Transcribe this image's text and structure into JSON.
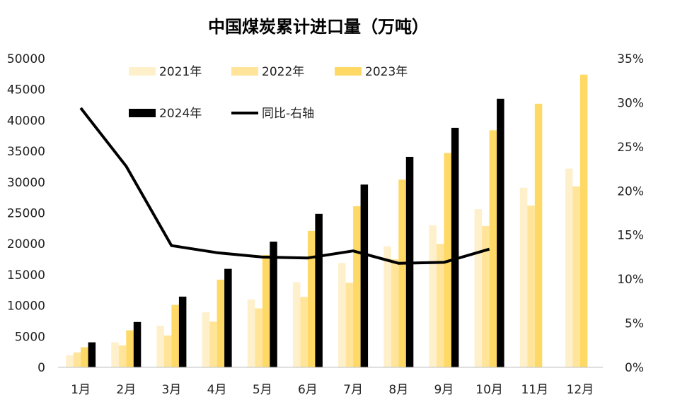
{
  "chart_data": {
    "type": "bar",
    "title": "中国煤炭累计进口量（万吨）",
    "categories": [
      "1月",
      "2月",
      "3月",
      "4月",
      "5月",
      "6月",
      "7月",
      "8月",
      "9月",
      "10月",
      "11月",
      "12月"
    ],
    "series": [
      {
        "name": "2021年",
        "kind": "bar",
        "color": "#FFF0CC",
        "values": [
          1950,
          4050,
          6750,
          8900,
          11000,
          13800,
          16900,
          19600,
          23000,
          25600,
          29100,
          32200
        ]
      },
      {
        "name": "2022年",
        "kind": "bar",
        "color": "#FFE49A",
        "values": [
          2400,
          3550,
          5150,
          7400,
          9550,
          11400,
          13700,
          17500,
          20000,
          22900,
          26200,
          29300
        ]
      },
      {
        "name": "2023年",
        "kind": "bar",
        "color": "#FFD966",
        "values": [
          3250,
          6000,
          10100,
          14200,
          18200,
          22100,
          26100,
          30400,
          34700,
          38400,
          42700,
          47400
        ]
      },
      {
        "name": "2024年",
        "kind": "bar",
        "color": "#000000",
        "values": [
          4050,
          7350,
          11450,
          15950,
          20350,
          24850,
          29600,
          34100,
          38800,
          43500,
          null,
          null
        ]
      },
      {
        "name": "同比-右轴",
        "kind": "line",
        "axis": "right",
        "color": "#000000",
        "values": [
          29.4,
          22.8,
          13.8,
          13.0,
          12.5,
          12.4,
          13.2,
          11.8,
          11.9,
          13.4,
          null,
          null
        ]
      }
    ],
    "y_left": {
      "min": 0,
      "max": 50000,
      "ticks": [
        "0",
        "5000",
        "10000",
        "15000",
        "20000",
        "25000",
        "30000",
        "35000",
        "40000",
        "45000",
        "50000"
      ]
    },
    "y_right": {
      "min": 0,
      "max": 35,
      "ticks": [
        "0%",
        "5%",
        "10%",
        "15%",
        "20%",
        "25%",
        "30%",
        "35%"
      ]
    },
    "grid": false,
    "legend_position": "top-inside"
  }
}
